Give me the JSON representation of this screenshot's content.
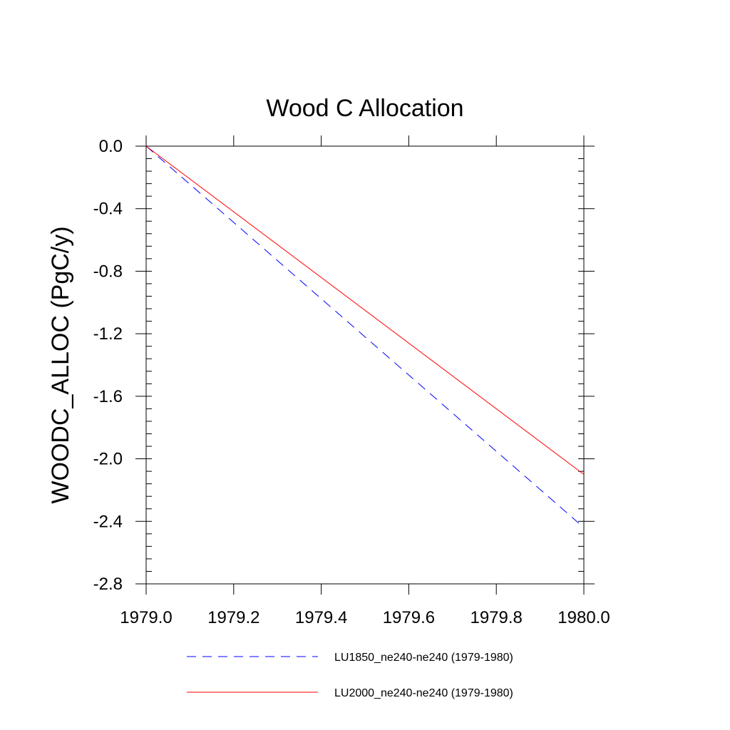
{
  "chart_data": {
    "type": "line",
    "title": "Wood C Allocation",
    "xlabel": "",
    "ylabel": "WOODC_ALLOC  (PgC/y)",
    "xlim": [
      1979.0,
      1980.0
    ],
    "ylim": [
      -2.8,
      0.0
    ],
    "x_ticks": [
      1979.0,
      1979.2,
      1979.4,
      1979.6,
      1979.8,
      1980.0
    ],
    "x_tick_labels": [
      "1979.0",
      "1979.2",
      "1979.4",
      "1979.6",
      "1979.8",
      "1980.0"
    ],
    "y_ticks": [
      0.0,
      -0.4,
      -0.8,
      -1.2,
      -1.6,
      -2.0,
      -2.4,
      -2.8
    ],
    "y_tick_labels": [
      "0.0",
      "-0.4",
      "-0.8",
      "-1.2",
      "-1.6",
      "-2.0",
      "-2.4",
      "-2.8"
    ],
    "grid": false,
    "legend_position": "bottom",
    "series": [
      {
        "name": "LU1850_ne240-ne240 (1979-1980)",
        "x": [
          1979.0,
          1980.0
        ],
        "values": [
          0.0,
          -2.44
        ],
        "color": "#0000ff",
        "style": "dashed"
      },
      {
        "name": "LU2000_ne240-ne240 (1979-1980)",
        "x": [
          1979.0,
          1980.0
        ],
        "values": [
          0.0,
          -2.1
        ],
        "color": "#ff0000",
        "style": "solid"
      }
    ]
  }
}
